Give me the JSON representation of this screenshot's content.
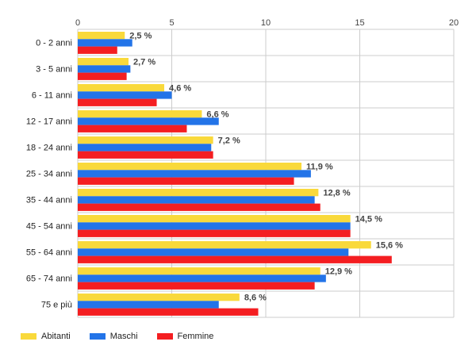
{
  "chart_data": {
    "type": "bar",
    "orientation": "horizontal",
    "categories": [
      "0 - 2 anni",
      "3 - 5 anni",
      "6 - 11 anni",
      "12 - 17 anni",
      "18 - 24 anni",
      "25 - 34 anni",
      "35 - 44 anni",
      "45 - 54 anni",
      "55 - 64 anni",
      "65 - 74 anni",
      "75 e più"
    ],
    "series": [
      {
        "name": "Abitanti",
        "color": "#f9d93b",
        "values": [
          2.5,
          2.7,
          4.6,
          6.6,
          7.2,
          11.9,
          12.8,
          14.5,
          15.6,
          12.9,
          8.6
        ]
      },
      {
        "name": "Maschi",
        "color": "#2374e8",
        "values": [
          2.9,
          2.8,
          5.0,
          7.5,
          7.1,
          12.4,
          12.6,
          14.5,
          14.4,
          13.2,
          7.5
        ]
      },
      {
        "name": "Femmine",
        "color": "#f41e21",
        "values": [
          2.1,
          2.6,
          4.2,
          5.8,
          7.2,
          11.5,
          12.9,
          14.5,
          16.7,
          12.6,
          9.6
        ]
      }
    ],
    "data_labels": [
      "2,5 %",
      "2,7 %",
      "4,6 %",
      "6,6 %",
      "7,2 %",
      "11,9 %",
      "12,8 %",
      "14,5 %",
      "15,6 %",
      "12,9 %",
      "8,6 %"
    ],
    "x_ticks": [
      "0",
      "5",
      "10",
      "15",
      "20"
    ],
    "xlim": [
      0,
      20
    ],
    "grid": true,
    "legend_position": "bottom-left"
  }
}
